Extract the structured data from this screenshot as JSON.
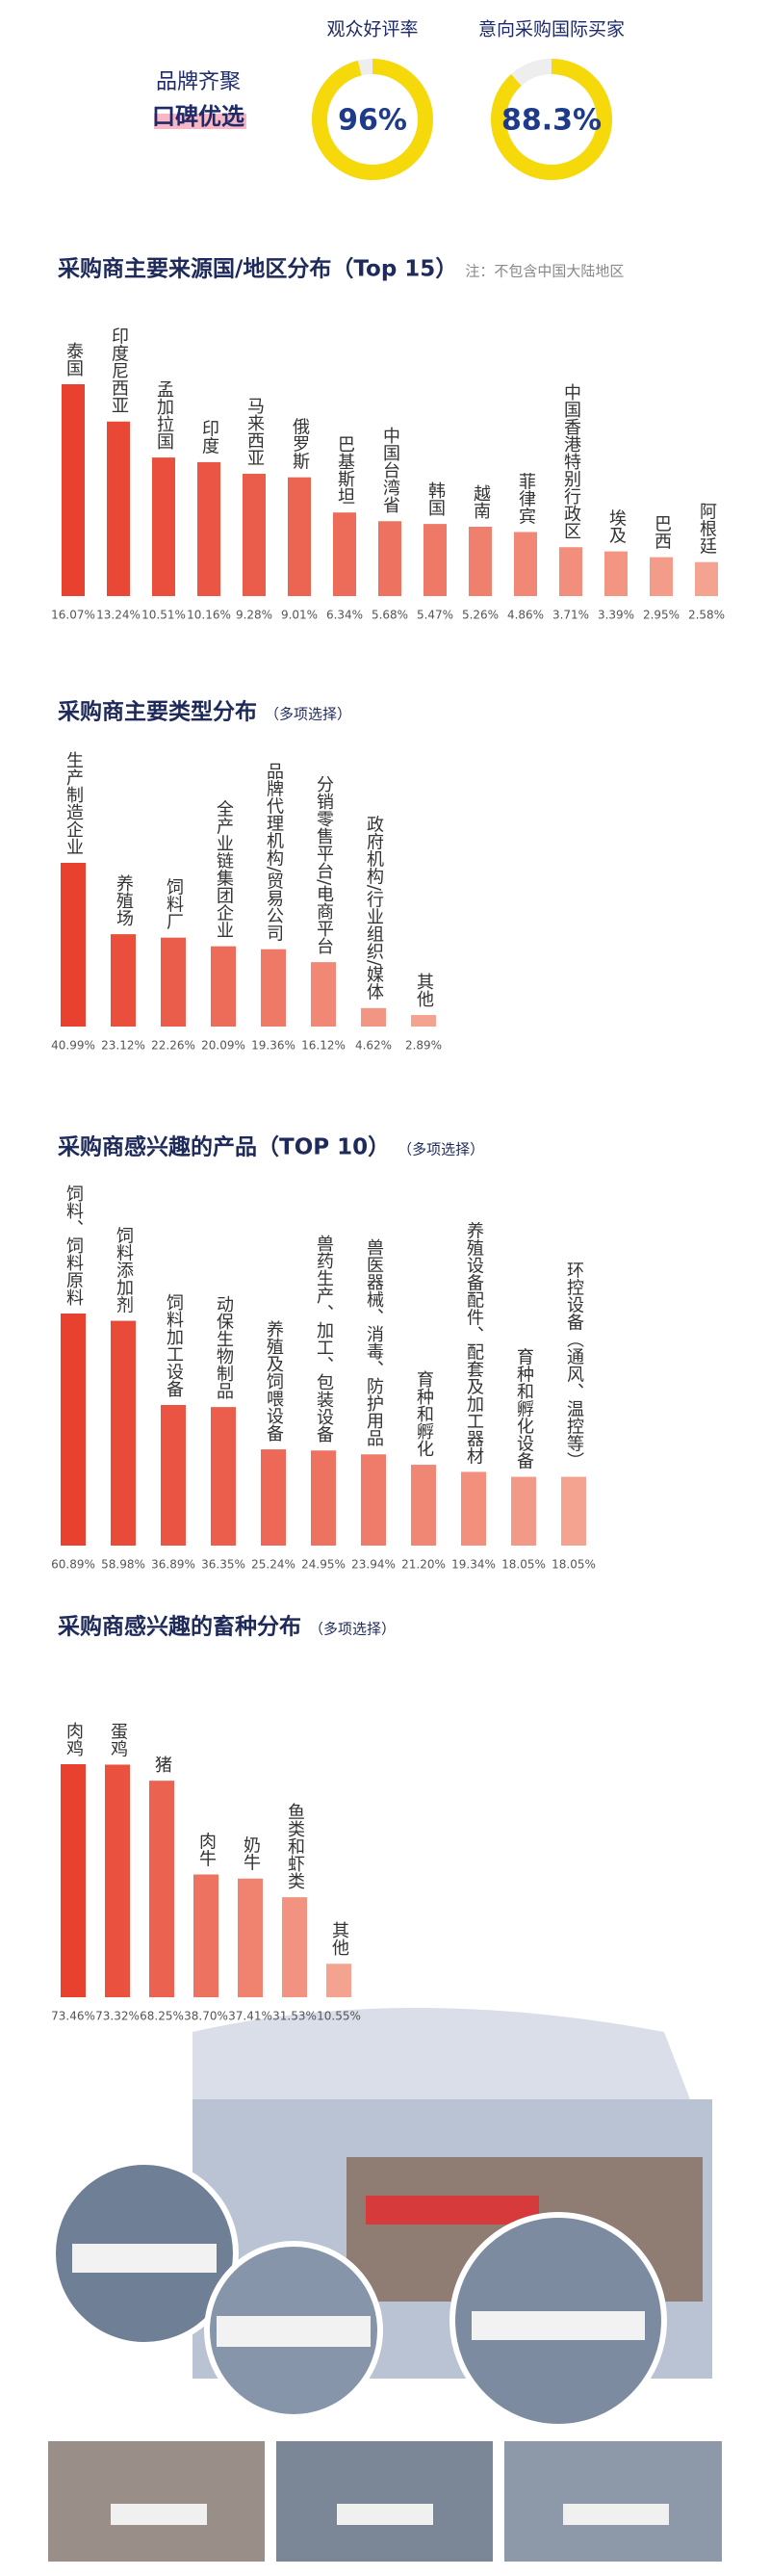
{
  "chart_data": [
    {
      "type": "donut",
      "title": "观众好评率",
      "value": 96,
      "value_label": "96%",
      "color": "#f5d90a"
    },
    {
      "type": "donut",
      "title": "意向采购国际买家",
      "value": 88.3,
      "value_label": "88.3%",
      "color": "#f5d90a"
    },
    {
      "type": "bar",
      "title": "采购商主要来源国/地区分布（Top 15）",
      "subtitle": "注：不包含中国大陆地区",
      "categories": [
        "泰国",
        "印度尼西亚",
        "孟加拉国",
        "印度",
        "马来西亚",
        "俄罗斯",
        "巴基斯坦",
        "中国台湾省",
        "韩国",
        "越南",
        "菲律宾",
        "中国香港特别行政区",
        "埃及",
        "巴西",
        "阿根廷"
      ],
      "values": [
        16.07,
        13.24,
        10.51,
        10.16,
        9.28,
        9.01,
        6.34,
        5.68,
        5.47,
        5.26,
        4.86,
        3.71,
        3.39,
        2.95,
        2.58
      ],
      "value_labels": [
        "16.07%",
        "13.24%",
        "10.51%",
        "10.16%",
        "9.28%",
        "9.01%",
        "6.34%",
        "5.68%",
        "5.47%",
        "5.26%",
        "4.86%",
        "3.71%",
        "3.39%",
        "2.95%",
        "2.58%"
      ],
      "color": "#e8412f",
      "color_end": "#f4a391"
    },
    {
      "type": "bar",
      "title": "采购商主要类型分布",
      "subtitle": "（多项选择）",
      "categories": [
        "生产制造企业",
        "养殖场",
        "饲料厂",
        "全产业链集团企业",
        "品牌代理机构/贸易公司",
        "分销零售平台/电商平台",
        "政府机构/行业组织/媒体",
        "其他"
      ],
      "values": [
        40.99,
        23.12,
        22.26,
        20.09,
        19.36,
        16.12,
        4.62,
        2.89
      ],
      "value_labels": [
        "40.99%",
        "23.12%",
        "22.26%",
        "20.09%",
        "19.36%",
        "16.12%",
        "4.62%",
        "2.89%"
      ],
      "color": "#e8412f",
      "color_end": "#f4a391"
    },
    {
      "type": "bar",
      "title": "采购商感兴趣的产品（TOP 10）",
      "subtitle": "（多项选择）",
      "categories": [
        "饲料、饲料原料",
        "饲料添加剂",
        "饲料加工设备",
        "动保生物制品",
        "养殖及饲喂设备",
        "兽药生产、加工、包装设备",
        "兽医器械、消毒、防护用品",
        "育种和孵化",
        "养殖设备配件、配套及加工器材",
        "育种和孵化设备",
        "环控设备（通风、温控等）"
      ],
      "values": [
        60.89,
        58.98,
        36.89,
        36.35,
        25.24,
        24.95,
        23.94,
        21.2,
        19.34,
        18.05,
        18.05
      ],
      "value_labels": [
        "60.89%",
        "58.98%",
        "36.89%",
        "36.35%",
        "25.24%",
        "24.95%",
        "23.94%",
        "21.20%",
        "19.34%",
        "18.05%",
        "18.05%"
      ],
      "color": "#e8412f",
      "color_end": "#f4a391"
    },
    {
      "type": "bar",
      "title": "采购商感兴趣的畜种分布",
      "subtitle": "（多项选择）",
      "categories": [
        "肉鸡",
        "蛋鸡",
        "猪",
        "肉牛",
        "奶牛",
        "鱼类和虾类",
        "其他"
      ],
      "values": [
        73.46,
        73.32,
        68.25,
        38.7,
        37.41,
        31.53,
        10.55
      ],
      "value_labels": [
        "73.46%",
        "73.32%",
        "68.25%",
        "38.70%",
        "37.41%",
        "31.53%",
        "10.55%"
      ],
      "color": "#e8412f",
      "color_end": "#f4a391"
    }
  ],
  "header": {
    "brand": "品牌齐聚",
    "tagline": "口碑优选"
  }
}
